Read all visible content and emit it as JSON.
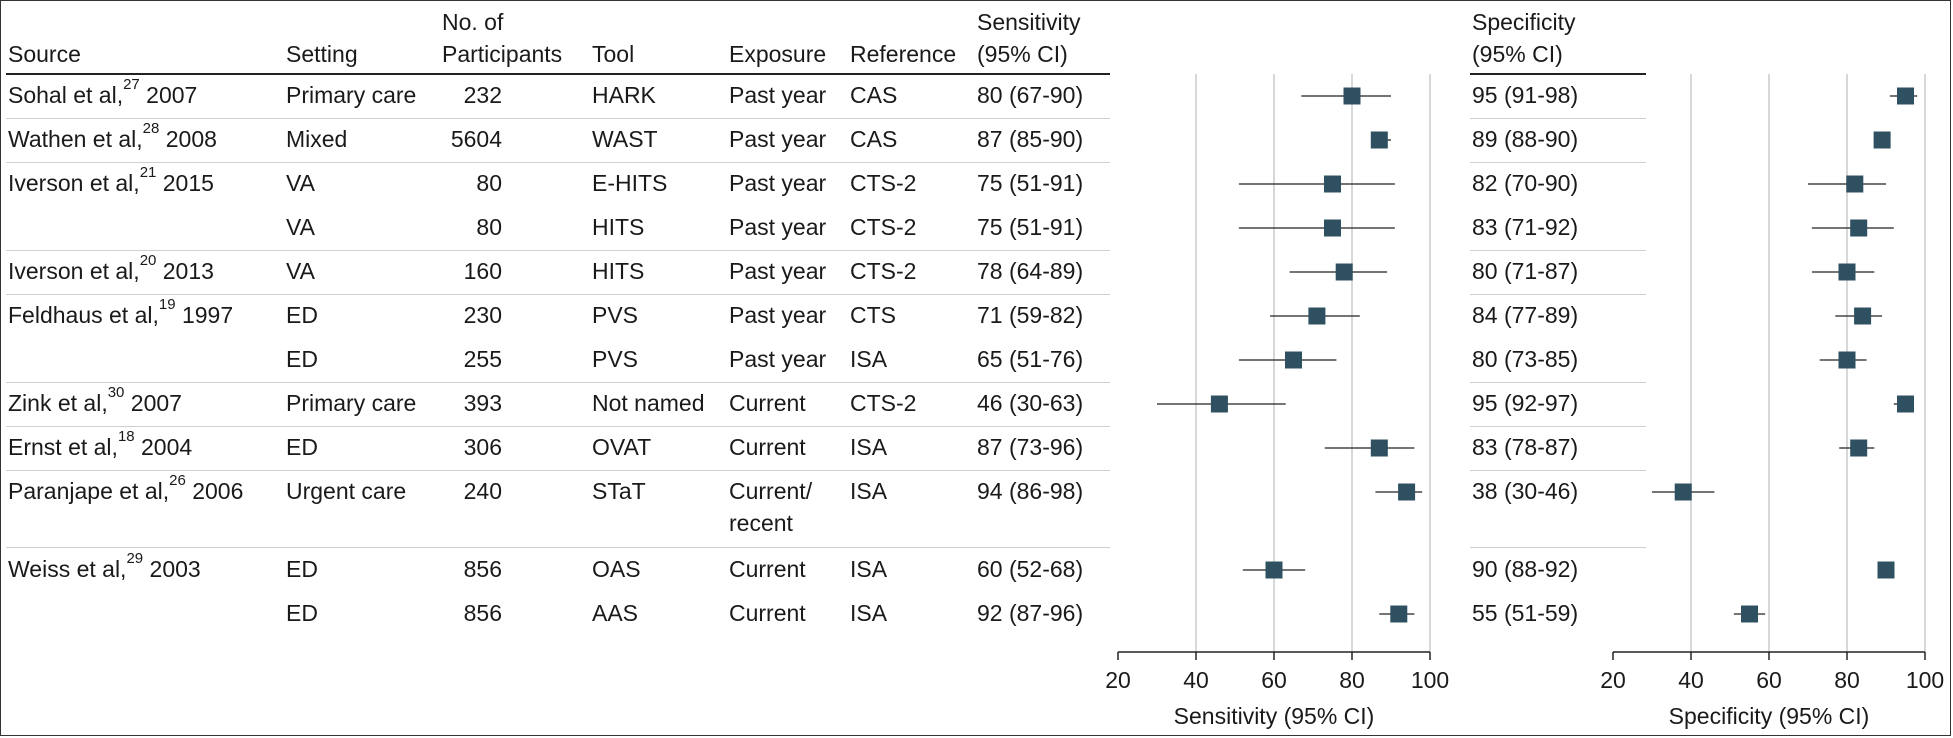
{
  "columns": {
    "source": "Source",
    "setting": "Setting",
    "participants_line1": "No. of",
    "participants_line2": "Participants",
    "tool": "Tool",
    "exposure": "Exposure",
    "reference": "Reference",
    "sensitivity_line1": "Sensitivity",
    "sensitivity_line2": "(95% CI)",
    "specificity_line1": "Specificity",
    "specificity_line2": "(95% CI)"
  },
  "rows": [
    {
      "author": "Sohal et al,",
      "ref": "27",
      "year": "2007",
      "setting": "Primary care",
      "n": "232",
      "tool": "HARK",
      "exposure": "Past year",
      "exposure2": "",
      "reference": "CAS",
      "sens_text": "80 (67-90)",
      "spec_text": "95 (91-98)"
    },
    {
      "author": "Wathen et al,",
      "ref": "28",
      "year": "2008",
      "setting": "Mixed",
      "n": "5604",
      "tool": "WAST",
      "exposure": "Past year",
      "exposure2": "",
      "reference": "CAS",
      "sens_text": "87 (85-90)",
      "spec_text": "89 (88-90)"
    },
    {
      "author": "Iverson et al,",
      "ref": "21",
      "year": "2015",
      "setting": "VA",
      "n": "80",
      "tool": "E-HITS",
      "exposure": "Past year",
      "exposure2": "",
      "reference": "CTS-2",
      "sens_text": "75 (51-91)",
      "spec_text": "82 (70-90)"
    },
    {
      "author": "",
      "ref": "",
      "year": "",
      "setting": "VA",
      "n": "80",
      "tool": "HITS",
      "exposure": "Past year",
      "exposure2": "",
      "reference": "CTS-2",
      "sens_text": "75 (51-91)",
      "spec_text": "83 (71-92)"
    },
    {
      "author": "Iverson et al,",
      "ref": "20",
      "year": "2013",
      "setting": "VA",
      "n": "160",
      "tool": "HITS",
      "exposure": "Past year",
      "exposure2": "",
      "reference": "CTS-2",
      "sens_text": "78 (64-89)",
      "spec_text": "80 (71-87)"
    },
    {
      "author": "Feldhaus et al,",
      "ref": "19",
      "year": "1997",
      "setting": "ED",
      "n": "230",
      "tool": "PVS",
      "exposure": "Past year",
      "exposure2": "",
      "reference": "CTS",
      "sens_text": "71 (59-82)",
      "spec_text": "84 (77-89)"
    },
    {
      "author": "",
      "ref": "",
      "year": "",
      "setting": "ED",
      "n": "255",
      "tool": "PVS",
      "exposure": "Past year",
      "exposure2": "",
      "reference": "ISA",
      "sens_text": "65 (51-76)",
      "spec_text": "80 (73-85)"
    },
    {
      "author": "Zink et al,",
      "ref": "30",
      "year": "2007",
      "setting": "Primary care",
      "n": "393",
      "tool": "Not named",
      "exposure": "Current",
      "exposure2": "",
      "reference": "CTS-2",
      "sens_text": "46 (30-63)",
      "spec_text": "95 (92-97)"
    },
    {
      "author": "Ernst et al,",
      "ref": "18",
      "year": "2004",
      "setting": "ED",
      "n": "306",
      "tool": "OVAT",
      "exposure": "Current",
      "exposure2": "",
      "reference": "ISA",
      "sens_text": "87 (73-96)",
      "spec_text": "83 (78-87)"
    },
    {
      "author": "Paranjape et al,",
      "ref": "26",
      "year": "2006",
      "setting": "Urgent care",
      "n": "240",
      "tool": "STaT",
      "exposure": "Current/",
      "exposure2": "recent",
      "reference": "ISA",
      "sens_text": "94 (86-98)",
      "spec_text": "38 (30-46)"
    },
    {
      "author": "Weiss et al,",
      "ref": "29",
      "year": "2003",
      "setting": "ED",
      "n": "856",
      "tool": "OAS",
      "exposure": "Current",
      "exposure2": "",
      "reference": "ISA",
      "sens_text": "60 (52-68)",
      "spec_text": "90 (88-92)"
    },
    {
      "author": "",
      "ref": "",
      "year": "",
      "setting": "ED",
      "n": "856",
      "tool": "AAS",
      "exposure": "Current",
      "exposure2": "",
      "reference": "ISA",
      "sens_text": "92 (87-96)",
      "spec_text": "55 (51-59)"
    }
  ],
  "colors": {
    "marker": "#2e5060",
    "gridline": "#cccccc",
    "axis": "#222222"
  },
  "chart_data": [
    {
      "type": "scatter",
      "title": "Sensitivity",
      "xlabel": "Sensitivity (95% CI)",
      "xlim": [
        20,
        100
      ],
      "xticks": [
        20,
        40,
        60,
        80,
        100
      ],
      "gridlines": [
        40,
        60,
        80,
        100
      ],
      "points": [
        {
          "est": 80,
          "lo": 67,
          "hi": 90
        },
        {
          "est": 87,
          "lo": 85,
          "hi": 90
        },
        {
          "est": 75,
          "lo": 51,
          "hi": 91
        },
        {
          "est": 75,
          "lo": 51,
          "hi": 91
        },
        {
          "est": 78,
          "lo": 64,
          "hi": 89
        },
        {
          "est": 71,
          "lo": 59,
          "hi": 82
        },
        {
          "est": 65,
          "lo": 51,
          "hi": 76
        },
        {
          "est": 46,
          "lo": 30,
          "hi": 63
        },
        {
          "est": 87,
          "lo": 73,
          "hi": 96
        },
        {
          "est": 94,
          "lo": 86,
          "hi": 98
        },
        {
          "est": 60,
          "lo": 52,
          "hi": 68
        },
        {
          "est": 92,
          "lo": 87,
          "hi": 96
        }
      ]
    },
    {
      "type": "scatter",
      "title": "Specificity",
      "xlabel": "Specificity (95% CI)",
      "xlim": [
        20,
        100
      ],
      "xticks": [
        20,
        40,
        60,
        80,
        100
      ],
      "gridlines": [
        40,
        60,
        80,
        100
      ],
      "points": [
        {
          "est": 95,
          "lo": 91,
          "hi": 98
        },
        {
          "est": 89,
          "lo": 88,
          "hi": 90
        },
        {
          "est": 82,
          "lo": 70,
          "hi": 90
        },
        {
          "est": 83,
          "lo": 71,
          "hi": 92
        },
        {
          "est": 80,
          "lo": 71,
          "hi": 87
        },
        {
          "est": 84,
          "lo": 77,
          "hi": 89
        },
        {
          "est": 80,
          "lo": 73,
          "hi": 85
        },
        {
          "est": 95,
          "lo": 92,
          "hi": 97
        },
        {
          "est": 83,
          "lo": 78,
          "hi": 87
        },
        {
          "est": 38,
          "lo": 30,
          "hi": 46
        },
        {
          "est": 90,
          "lo": 88,
          "hi": 92
        },
        {
          "est": 55,
          "lo": 51,
          "hi": 59
        }
      ]
    }
  ]
}
